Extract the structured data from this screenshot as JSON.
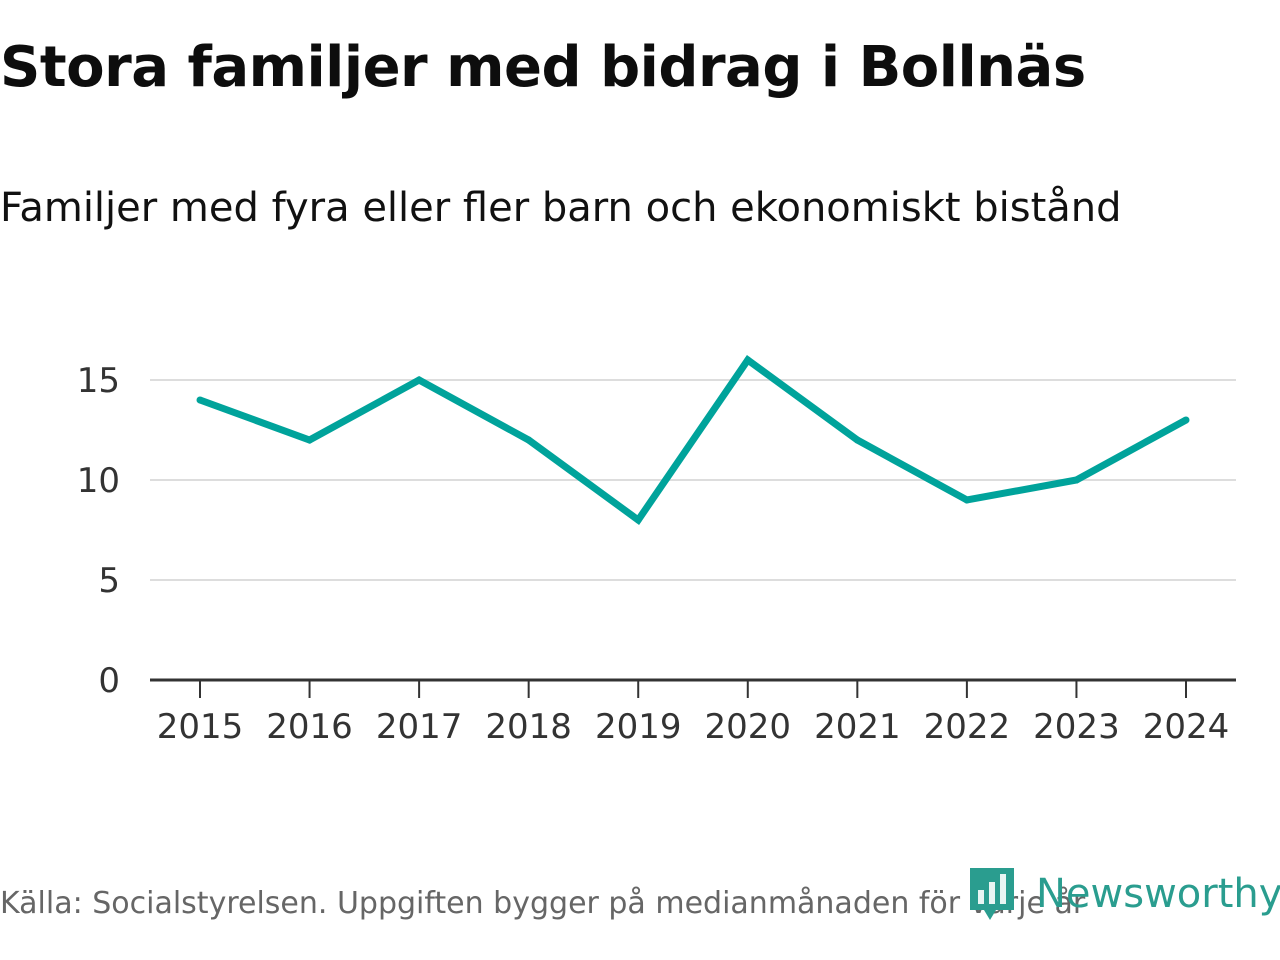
{
  "header": {
    "title": "Stora familjer med bidrag i Bollnäs",
    "subtitle": "Familjer med fyra eller fler barn och ekonomiskt bistånd"
  },
  "footer": {
    "source": "Källa: Socialstyrelsen. Uppgiften bygger på medianmånaden för varje år",
    "brand": "Newsworthy"
  },
  "colors": {
    "series": "#00A39B",
    "grid": "#dddddd",
    "axis": "#333333",
    "brand": "#2a9d8f"
  },
  "chart_data": {
    "type": "line",
    "title": "Stora familjer med bidrag i Bollnäs",
    "subtitle": "Familjer med fyra eller fler barn och ekonomiskt bistånd",
    "xlabel": "",
    "ylabel": "",
    "categories": [
      "2015",
      "2016",
      "2017",
      "2018",
      "2019",
      "2020",
      "2021",
      "2022",
      "2023",
      "2024"
    ],
    "series": [
      {
        "name": "Familjer med fyra eller fler barn och ekonomiskt bistånd",
        "values": [
          14,
          12,
          15,
          12,
          8,
          16,
          12,
          9,
          10,
          13
        ]
      }
    ],
    "yticks": [
      "0",
      "5",
      "10",
      "15"
    ],
    "ylim": [
      0,
      17
    ],
    "grid": true,
    "legend": "none"
  }
}
